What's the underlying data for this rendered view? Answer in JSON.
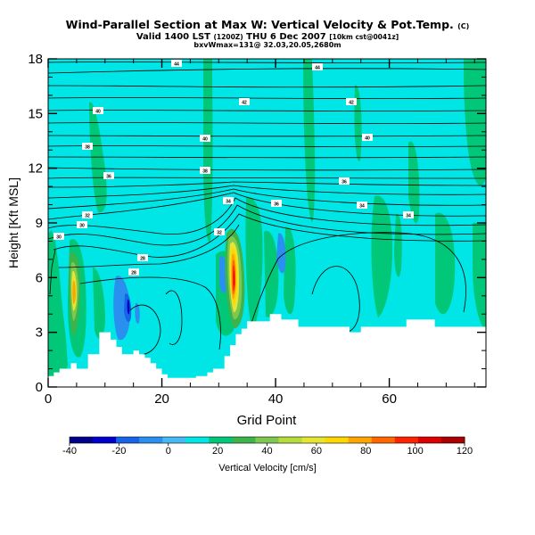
{
  "header": {
    "title": "Wind-Parallel Section at Max W: Vertical Velocity & Pot.Temp.",
    "title_suffix": "(C)",
    "valid_prefix": "Valid 1400 LST",
    "valid_z": "(1200Z)",
    "valid_date": "THU 6 Dec 2007",
    "valid_suffix": "[10km cst@0041z]",
    "subinfo": "bxvWmax=131@ 32.03,20.05,2680m"
  },
  "chart_data": {
    "type": "heatmap",
    "title": "Wind-Parallel Section at Max W: Vertical Velocity & Pot.Temp.",
    "xlabel": "Grid Point",
    "ylabel": "Height [Kft MSL]",
    "xlim": [
      0,
      77
    ],
    "ylim": [
      0,
      18
    ],
    "x_ticks": [
      0,
      20,
      40,
      60
    ],
    "y_ticks": [
      0,
      3,
      6,
      9,
      12,
      15,
      18
    ],
    "colorbar": {
      "label": "Vertical Velocity [cm/s]",
      "ticks": [
        -40,
        -20,
        0,
        20,
        40,
        60,
        80,
        100,
        120
      ],
      "range": [
        -40,
        120
      ],
      "colors": [
        "#00008b",
        "#0000cd",
        "#1565e6",
        "#2a90f0",
        "#46b8f5",
        "#00e5e5",
        "#00c878",
        "#3cb44b",
        "#7ec850",
        "#b4dc3c",
        "#e6e632",
        "#ffd700",
        "#ffa500",
        "#ff6600",
        "#ff2200",
        "#dd0000",
        "#aa0000"
      ]
    },
    "series": [
      {
        "x": [
          0,
          20,
          40,
          60
        ],
        "values": [
          0,
          0,
          0,
          0
        ]
      }
    ],
    "isentrope_labels": [
      "44",
      "44",
      "42",
      "42",
      "40",
      "40",
      "40",
      "38",
      "38",
      "36",
      "36",
      "36",
      "34",
      "34",
      "34",
      "32",
      "32",
      "30",
      "30",
      "28",
      "28"
    ],
    "terrain_height_kft": {
      "x": [
        0,
        1,
        2,
        3,
        4,
        5,
        6,
        7,
        8,
        9,
        10,
        11,
        12,
        13,
        14,
        15,
        16,
        17,
        18,
        19,
        20,
        21,
        22,
        23,
        24,
        25,
        26,
        27,
        28,
        29,
        30,
        31,
        32,
        33,
        34,
        35,
        36,
        37,
        38,
        39,
        40,
        41,
        42,
        43,
        44,
        45,
        46,
        47,
        48,
        49,
        50,
        51,
        52,
        53,
        54,
        55,
        56,
        57,
        58,
        59,
        60,
        61,
        62,
        63,
        64,
        65,
        66,
        67,
        68,
        69,
        70,
        71,
        72,
        73,
        74,
        75,
        76,
        77
      ],
      "h": [
        0.6,
        0.8,
        1.0,
        1.0,
        1.3,
        1.0,
        1.0,
        1.8,
        1.8,
        3.0,
        3.0,
        2.6,
        2.2,
        1.8,
        1.8,
        2.0,
        1.8,
        1.6,
        1.3,
        1.0,
        0.7,
        0.5,
        0.5,
        0.5,
        0.5,
        0.5,
        0.6,
        0.6,
        0.8,
        1.0,
        1.0,
        1.7,
        2.3,
        2.9,
        3.2,
        3.6,
        3.6,
        3.6,
        3.6,
        4.0,
        4.0,
        3.7,
        3.7,
        3.7,
        3.3,
        3.3,
        3.3,
        3.3,
        3.3,
        3.3,
        3.3,
        3.3,
        3.3,
        3.0,
        3.0,
        3.3,
        3.3,
        3.3,
        3.3,
        3.3,
        3.3,
        3.3,
        3.3,
        3.7,
        3.7,
        3.7,
        3.7,
        3.7,
        3.3,
        3.3,
        3.3,
        3.3,
        3.3,
        3.3,
        3.3,
        3.3,
        3.3,
        3.3
      ]
    },
    "grid": false
  }
}
